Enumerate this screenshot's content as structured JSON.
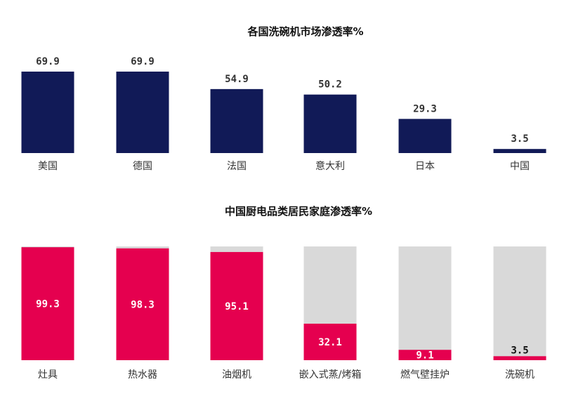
{
  "chart_data": [
    {
      "type": "bar",
      "title": "各国洗碗机市场渗透率%",
      "categories": [
        "美国",
        "德国",
        "法国",
        "意大利",
        "日本",
        "中国"
      ],
      "values": [
        69.9,
        69.9,
        54.9,
        50.2,
        29.3,
        3.5
      ],
      "value_labels": [
        "69.9",
        "69.9",
        "54.9",
        "50.2",
        "29.3",
        "3.5"
      ],
      "ylim": [
        0,
        100
      ],
      "color": "#111a57",
      "grid": false,
      "legend": "none"
    },
    {
      "type": "bar",
      "title": "中国厨电品类居民家庭渗透率%",
      "categories": [
        "灶具",
        "热水器",
        "油烟机",
        "嵌入式蒸/烤箱",
        "燃气壁挂炉",
        "洗碗机"
      ],
      "values": [
        99.3,
        98.3,
        95.1,
        32.1,
        9.1,
        3.5
      ],
      "value_labels": [
        "99.3",
        "98.3",
        "95.1",
        "32.1",
        "9.1",
        "3.5"
      ],
      "ylim": [
        0,
        100
      ],
      "color": "#e5004f",
      "background_color": "#d9d9d9",
      "grid": false,
      "legend": "none"
    }
  ]
}
